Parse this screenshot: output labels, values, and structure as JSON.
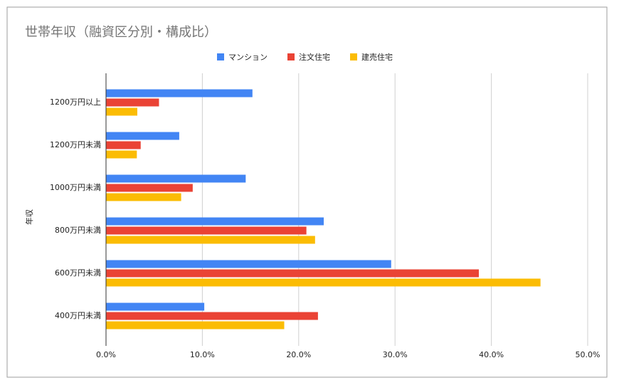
{
  "chart_data": {
    "type": "bar",
    "orientation": "horizontal",
    "title": "世帯年収（融資区分別・構成比）",
    "y_label": "年収",
    "categories": [
      "1200万円以上",
      "1200万円未満",
      "1000万円未満",
      "800万円未満",
      "600万円未満",
      "400万円未満"
    ],
    "series": [
      {
        "name": "マンション",
        "color": "#4285f4",
        "values": [
          15.2,
          7.6,
          14.5,
          22.6,
          29.6,
          10.2
        ]
      },
      {
        "name": "注文住宅",
        "color": "#ea4335",
        "values": [
          5.5,
          3.6,
          9.0,
          20.8,
          38.7,
          22.0
        ]
      },
      {
        "name": "建売住宅",
        "color": "#fbbc04",
        "values": [
          3.25,
          3.2,
          7.8,
          21.7,
          45.1,
          18.5
        ]
      }
    ],
    "xlim": [
      0,
      50
    ],
    "xticks": [
      {
        "value": 0,
        "label": "0.0%"
      },
      {
        "value": 10,
        "label": "10.0%"
      },
      {
        "value": 20,
        "label": "20.0%"
      },
      {
        "value": 30,
        "label": "30.0%"
      },
      {
        "value": 40,
        "label": "40.0%"
      },
      {
        "value": 50,
        "label": "50.0%"
      }
    ],
    "grid": true
  }
}
